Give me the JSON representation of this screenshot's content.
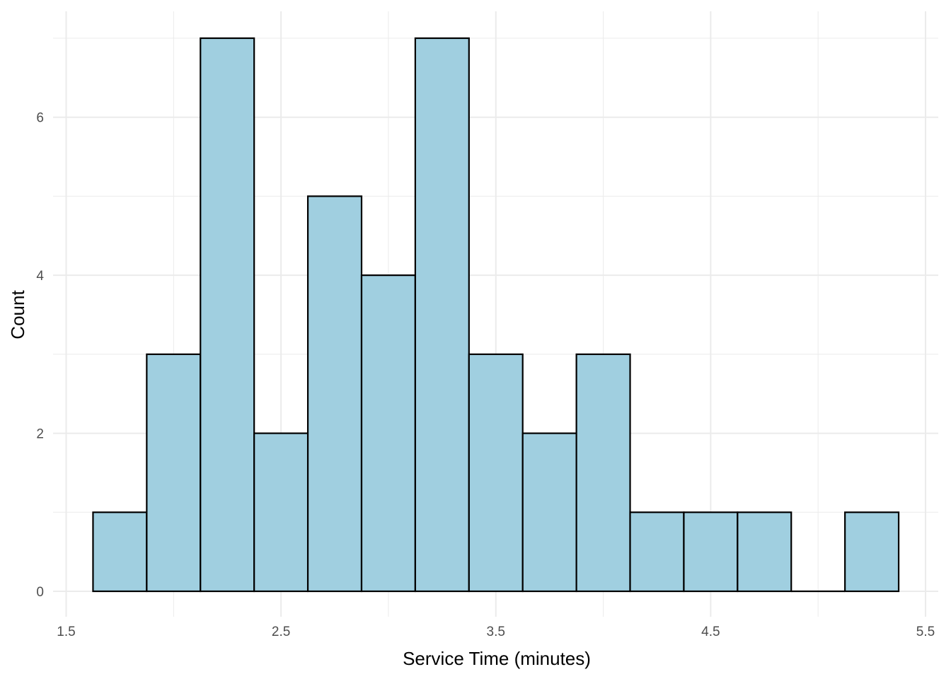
{
  "chart_data": {
    "type": "bar",
    "subtype": "histogram",
    "title": "",
    "xlabel": "Service Time (minutes)",
    "ylabel": "Count",
    "xlim": [
      1.5,
      5.5
    ],
    "ylim": [
      0,
      7
    ],
    "x_ticks": [
      1.5,
      2.5,
      3.5,
      4.5,
      5.5
    ],
    "x_tick_labels": [
      "1.5",
      "2.5",
      "3.5",
      "4.5",
      "5.5"
    ],
    "y_ticks": [
      0,
      2,
      4,
      6
    ],
    "y_tick_labels": [
      "0",
      "2",
      "4",
      "6"
    ],
    "bin_width": 0.25,
    "bins": [
      {
        "start": 1.625,
        "end": 1.875,
        "count": 1
      },
      {
        "start": 1.875,
        "end": 2.125,
        "count": 3
      },
      {
        "start": 2.125,
        "end": 2.375,
        "count": 7
      },
      {
        "start": 2.375,
        "end": 2.625,
        "count": 2
      },
      {
        "start": 2.625,
        "end": 2.875,
        "count": 5
      },
      {
        "start": 2.875,
        "end": 3.125,
        "count": 4
      },
      {
        "start": 3.125,
        "end": 3.375,
        "count": 7
      },
      {
        "start": 3.375,
        "end": 3.625,
        "count": 3
      },
      {
        "start": 3.625,
        "end": 3.875,
        "count": 2
      },
      {
        "start": 3.875,
        "end": 4.125,
        "count": 3
      },
      {
        "start": 4.125,
        "end": 4.375,
        "count": 1
      },
      {
        "start": 4.375,
        "end": 4.625,
        "count": 1
      },
      {
        "start": 4.625,
        "end": 4.875,
        "count": 1
      },
      {
        "start": 4.875,
        "end": 5.125,
        "count": 0
      },
      {
        "start": 5.125,
        "end": 5.375,
        "count": 1
      }
    ],
    "bar_fill": "#a0cfe0",
    "bar_outline": "#000000",
    "grid": true,
    "legend": "none"
  }
}
